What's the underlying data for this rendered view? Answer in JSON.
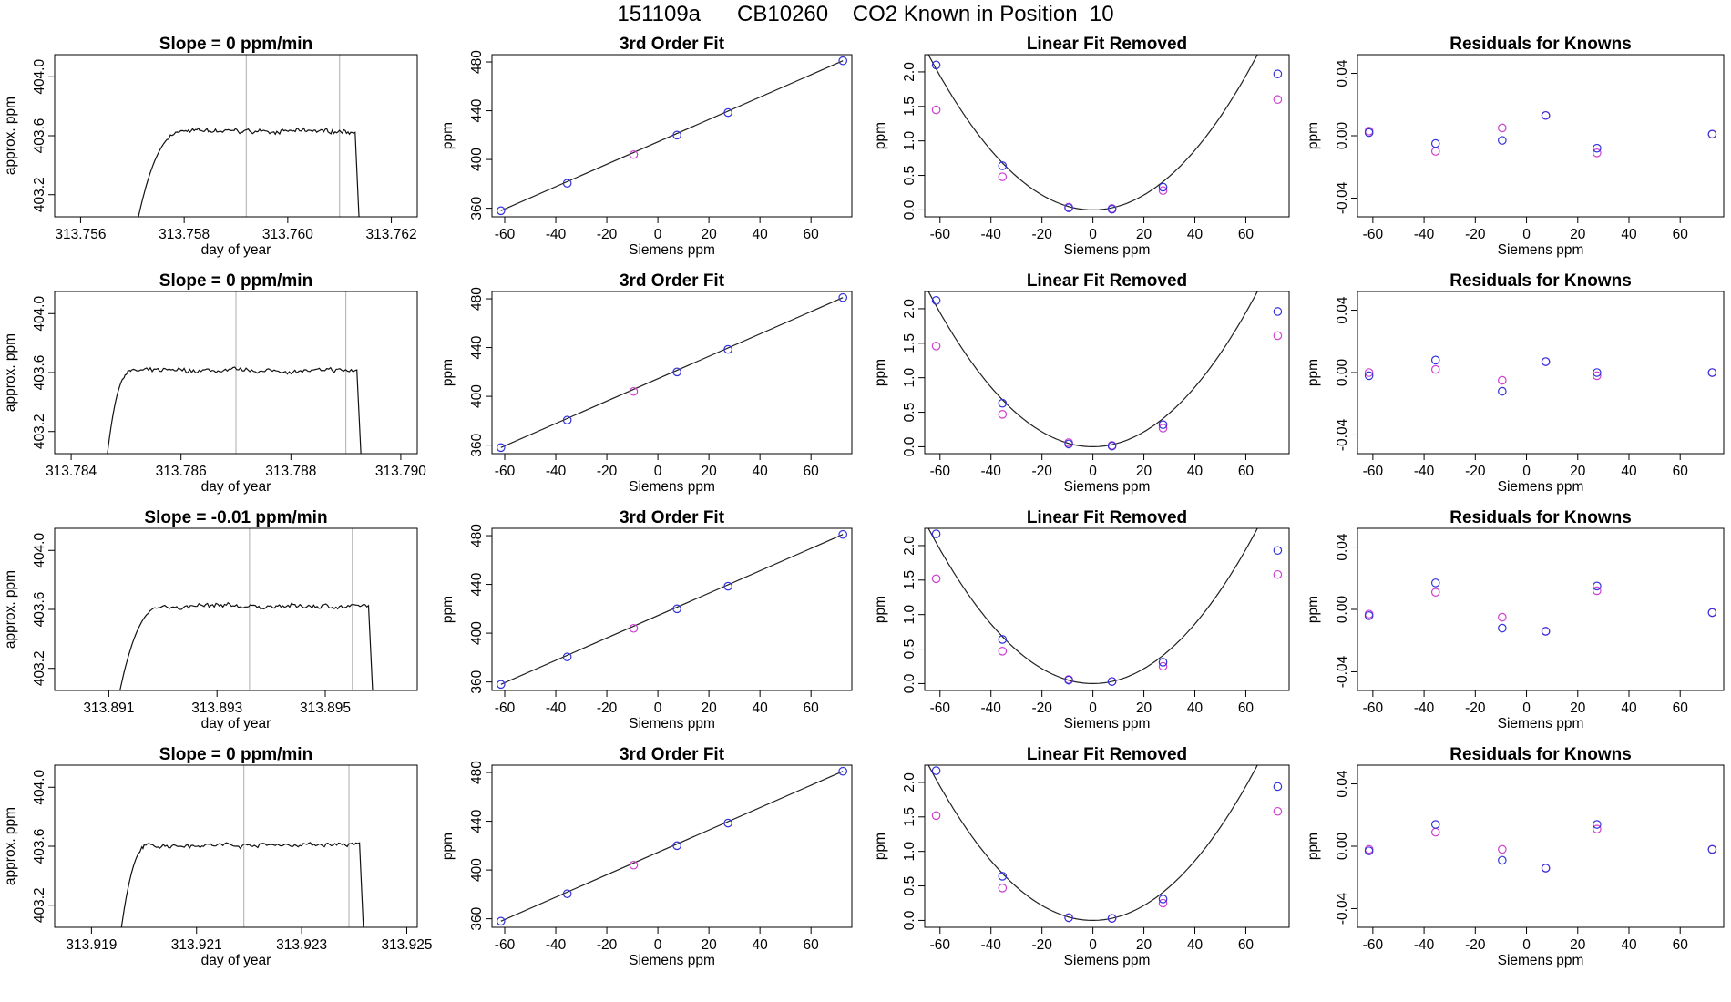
{
  "page_title": "151109a      CB10260    CO2 Known in Position  10",
  "colors": {
    "fit_line": "#222222",
    "blue_points": "#3333dd",
    "magenta_points": "#d040d0",
    "vline": "#bbbbbb",
    "frame": "#000000"
  },
  "chart_data": [
    {
      "type": "line",
      "title": "Slope =  0  ppm/min",
      "xlabel": "day of year",
      "ylabel": "approx. ppm",
      "xlim": [
        313.7555,
        313.7625
      ],
      "ylim": [
        403.05,
        404.15
      ],
      "xticks": [
        313.756,
        313.758,
        313.76,
        313.762
      ],
      "xtick_labels": [
        "313.756",
        "313.758",
        "313.760",
        "313.762"
      ],
      "yticks": [
        403.2,
        403.6,
        404.0
      ],
      "ytick_labels": [
        "403.2",
        "403.6",
        "404.0"
      ],
      "trace": {
        "x_start": 313.757,
        "x_plateau": 313.758,
        "x_drop": 313.7613,
        "x_end": 313.7614,
        "plateau": 403.63
      },
      "vlines": [
        313.7592,
        313.761
      ]
    },
    {
      "type": "scatter",
      "title": "3rd Order Fit",
      "xlabel": "Siemens ppm",
      "ylabel": "ppm",
      "xlim": [
        -65,
        76
      ],
      "ylim": [
        353,
        486
      ],
      "xticks": [
        -60,
        -40,
        -20,
        0,
        20,
        40,
        60
      ],
      "xtick_labels": [
        "-60",
        "-40",
        "-20",
        "0",
        "20",
        "40",
        "60"
      ],
      "yticks": [
        360,
        400,
        440,
        480
      ],
      "ytick_labels": [
        "360",
        "400",
        "440",
        "480"
      ],
      "blue": {
        "x": [
          -61.5,
          -35.5,
          7.5,
          27.5,
          72.5
        ],
        "y": [
          358,
          380.5,
          420,
          438.5,
          481
        ]
      },
      "magenta": {
        "x": [
          -9.5
        ],
        "y": [
          404
        ]
      },
      "fit": {
        "x": [
          -61.5,
          72.5
        ],
        "y": [
          358,
          481
        ]
      }
    },
    {
      "type": "scatter",
      "title": "Linear Fit Removed",
      "xlabel": "Siemens ppm",
      "ylabel": "ppm",
      "xlim": [
        -66,
        77
      ],
      "ylim": [
        -0.1,
        2.25
      ],
      "xticks": [
        -60,
        -40,
        -20,
        0,
        20,
        40,
        60
      ],
      "xtick_labels": [
        "-60",
        "-40",
        "-20",
        "0",
        "20",
        "40",
        "60"
      ],
      "yticks": [
        0,
        0.5,
        1.0,
        1.5,
        2.0
      ],
      "ytick_labels": [
        "0.0",
        "0.5",
        "1.0",
        "1.5",
        "2.0"
      ],
      "blue": {
        "x": [
          -61.5,
          -35.5,
          -9.5,
          7.5,
          27.5,
          72.5
        ],
        "y": [
          2.1,
          0.64,
          0.03,
          0.01,
          0.33,
          1.97
        ]
      },
      "magenta": {
        "x": [
          -61.5,
          -35.5,
          -9.5,
          7.5,
          27.5,
          72.5
        ],
        "y": [
          1.45,
          0.48,
          0.04,
          0.02,
          0.28,
          1.6
        ]
      },
      "curve": {
        "a": 0.00054,
        "c": 0.0
      }
    },
    {
      "type": "scatter",
      "title": "Residuals for Knowns",
      "xlabel": "Siemens ppm",
      "ylabel": "ppm",
      "xlim": [
        -66,
        77
      ],
      "ylim": [
        -0.052,
        0.052
      ],
      "xticks": [
        -60,
        -40,
        -20,
        0,
        20,
        40,
        60
      ],
      "xtick_labels": [
        "-60",
        "-40",
        "-20",
        "0",
        "20",
        "40",
        "60"
      ],
      "yticks": [
        -0.04,
        0,
        0.04
      ],
      "ytick_labels": [
        "-0.04",
        "0.00",
        "0.04"
      ],
      "blue": {
        "x": [
          -61.5,
          -35.5,
          -9.5,
          7.5,
          27.5,
          72.5
        ],
        "y": [
          0.002,
          -0.005,
          -0.003,
          0.013,
          -0.008,
          0.001
        ]
      },
      "magenta": {
        "x": [
          -61.5,
          -35.5,
          -9.5,
          7.5,
          27.5,
          72.5
        ],
        "y": [
          0.003,
          -0.01,
          0.005,
          0.013,
          -0.011,
          0.001
        ]
      }
    },
    {
      "type": "line",
      "title": "Slope =  0  ppm/min",
      "xlabel": "day of year",
      "ylabel": "approx. ppm",
      "xlim": [
        313.7837,
        313.7903
      ],
      "ylim": [
        403.05,
        404.15
      ],
      "xticks": [
        313.784,
        313.786,
        313.788,
        313.79
      ],
      "xtick_labels": [
        "313.784",
        "313.786",
        "313.788",
        "313.790"
      ],
      "yticks": [
        403.2,
        403.6,
        404.0
      ],
      "ytick_labels": [
        "403.2",
        "403.6",
        "404.0"
      ],
      "trace": {
        "x_start": 313.7846,
        "x_plateau": 313.7851,
        "x_drop": 313.7892,
        "x_end": 313.7893,
        "plateau": 403.61
      },
      "vlines": [
        313.787,
        313.789
      ]
    },
    {
      "type": "scatter",
      "title": "3rd Order Fit",
      "xlabel": "Siemens ppm",
      "ylabel": "ppm",
      "xlim": [
        -65,
        76
      ],
      "ylim": [
        353,
        486
      ],
      "xticks": [
        -60,
        -40,
        -20,
        0,
        20,
        40,
        60
      ],
      "xtick_labels": [
        "-60",
        "-40",
        "-20",
        "0",
        "20",
        "40",
        "60"
      ],
      "yticks": [
        360,
        400,
        440,
        480
      ],
      "ytick_labels": [
        "360",
        "400",
        "440",
        "480"
      ],
      "blue": {
        "x": [
          -61.5,
          -35.5,
          7.5,
          27.5,
          72.5
        ],
        "y": [
          358,
          380.5,
          420,
          438.5,
          481
        ]
      },
      "magenta": {
        "x": [
          -9.5
        ],
        "y": [
          404
        ]
      },
      "fit": {
        "x": [
          -61.5,
          72.5
        ],
        "y": [
          358,
          481
        ]
      }
    },
    {
      "type": "scatter",
      "title": "Linear Fit Removed",
      "xlabel": "Siemens ppm",
      "ylabel": "ppm",
      "xlim": [
        -66,
        77
      ],
      "ylim": [
        -0.1,
        2.25
      ],
      "xticks": [
        -60,
        -40,
        -20,
        0,
        20,
        40,
        60
      ],
      "xtick_labels": [
        "-60",
        "-40",
        "-20",
        "0",
        "20",
        "40",
        "60"
      ],
      "yticks": [
        0,
        0.5,
        1.0,
        1.5,
        2.0
      ],
      "ytick_labels": [
        "0.0",
        "0.5",
        "1.0",
        "1.5",
        "2.0"
      ],
      "blue": {
        "x": [
          -61.5,
          -35.5,
          -9.5,
          7.5,
          27.5,
          72.5
        ],
        "y": [
          2.12,
          0.63,
          0.04,
          0.01,
          0.32,
          1.96
        ]
      },
      "magenta": {
        "x": [
          -61.5,
          -35.5,
          -9.5,
          7.5,
          27.5,
          72.5
        ],
        "y": [
          1.46,
          0.47,
          0.06,
          0.02,
          0.27,
          1.61
        ]
      },
      "curve": {
        "a": 0.00054,
        "c": 0.0
      }
    },
    {
      "type": "scatter",
      "title": "Residuals for Knowns",
      "xlabel": "Siemens ppm",
      "ylabel": "ppm",
      "xlim": [
        -66,
        77
      ],
      "ylim": [
        -0.052,
        0.052
      ],
      "xticks": [
        -60,
        -40,
        -20,
        0,
        20,
        40,
        60
      ],
      "xtick_labels": [
        "-60",
        "-40",
        "-20",
        "0",
        "20",
        "40",
        "60"
      ],
      "yticks": [
        -0.04,
        0,
        0.04
      ],
      "ytick_labels": [
        "-0.04",
        "0.00",
        "0.04"
      ],
      "blue": {
        "x": [
          -61.5,
          -35.5,
          -9.5,
          7.5,
          27.5,
          72.5
        ],
        "y": [
          -0.002,
          0.008,
          -0.012,
          0.007,
          0.0,
          0.0
        ]
      },
      "magenta": {
        "x": [
          -61.5,
          -35.5,
          -9.5,
          7.5,
          27.5,
          72.5
        ],
        "y": [
          0.0,
          0.002,
          -0.005,
          0.007,
          -0.002,
          0.0
        ]
      }
    },
    {
      "type": "line",
      "title": "Slope =  -0.01  ppm/min",
      "xlabel": "day of year",
      "ylabel": "approx. ppm",
      "xlim": [
        313.89,
        313.8967
      ],
      "ylim": [
        403.05,
        404.15
      ],
      "xticks": [
        313.891,
        313.893,
        313.895
      ],
      "xtick_labels": [
        "313.891",
        "313.893",
        "313.895"
      ],
      "yticks": [
        403.2,
        403.6,
        404.0
      ],
      "ytick_labels": [
        "403.2",
        "403.6",
        "404.0"
      ],
      "trace": {
        "x_start": 313.8911,
        "x_plateau": 313.892,
        "x_drop": 313.8958,
        "x_end": 313.8959,
        "plateau": 403.62
      },
      "vlines": [
        313.8936,
        313.8955
      ]
    },
    {
      "type": "scatter",
      "title": "3rd Order Fit",
      "xlabel": "Siemens ppm",
      "ylabel": "ppm",
      "xlim": [
        -65,
        76
      ],
      "ylim": [
        353,
        486
      ],
      "xticks": [
        -60,
        -40,
        -20,
        0,
        20,
        40,
        60
      ],
      "xtick_labels": [
        "-60",
        "-40",
        "-20",
        "0",
        "20",
        "40",
        "60"
      ],
      "yticks": [
        360,
        400,
        440,
        480
      ],
      "ytick_labels": [
        "360",
        "400",
        "440",
        "480"
      ],
      "blue": {
        "x": [
          -61.5,
          -35.5,
          7.5,
          27.5,
          72.5
        ],
        "y": [
          358,
          380.5,
          420,
          438.5,
          481
        ]
      },
      "magenta": {
        "x": [
          -9.5
        ],
        "y": [
          404
        ]
      },
      "fit": {
        "x": [
          -61.5,
          72.5
        ],
        "y": [
          358,
          481
        ]
      }
    },
    {
      "type": "scatter",
      "title": "Linear Fit Removed",
      "xlabel": "Siemens ppm",
      "ylabel": "ppm",
      "xlim": [
        -66,
        77
      ],
      "ylim": [
        -0.1,
        2.25
      ],
      "xticks": [
        -60,
        -40,
        -20,
        0,
        20,
        40,
        60
      ],
      "xtick_labels": [
        "-60",
        "-40",
        "-20",
        "0",
        "20",
        "40",
        "60"
      ],
      "yticks": [
        0,
        0.5,
        1.0,
        1.5,
        2.0
      ],
      "ytick_labels": [
        "0.0",
        "0.5",
        "1.0",
        "1.5",
        "2.0"
      ],
      "blue": {
        "x": [
          -61.5,
          -35.5,
          -9.5,
          7.5,
          27.5,
          72.5
        ],
        "y": [
          2.17,
          0.64,
          0.05,
          0.03,
          0.31,
          1.93
        ]
      },
      "magenta": {
        "x": [
          -61.5,
          -35.5,
          -9.5,
          7.5,
          27.5,
          72.5
        ],
        "y": [
          1.52,
          0.47,
          0.06,
          0.03,
          0.25,
          1.58
        ]
      },
      "curve": {
        "a": 0.00054,
        "c": 0.0
      }
    },
    {
      "type": "scatter",
      "title": "Residuals for Knowns",
      "xlabel": "Siemens ppm",
      "ylabel": "ppm",
      "xlim": [
        -66,
        77
      ],
      "ylim": [
        -0.052,
        0.052
      ],
      "xticks": [
        -60,
        -40,
        -20,
        0,
        20,
        40,
        60
      ],
      "xtick_labels": [
        "-60",
        "-40",
        "-20",
        "0",
        "20",
        "40",
        "60"
      ],
      "yticks": [
        -0.04,
        0,
        0.04
      ],
      "ytick_labels": [
        "-0.04",
        "0.00",
        "0.04"
      ],
      "blue": {
        "x": [
          -61.5,
          -35.5,
          -9.5,
          7.5,
          27.5,
          72.5
        ],
        "y": [
          -0.004,
          0.017,
          -0.012,
          -0.014,
          0.015,
          -0.002
        ]
      },
      "magenta": {
        "x": [
          -61.5,
          -35.5,
          -9.5,
          7.5,
          27.5,
          72.5
        ],
        "y": [
          -0.003,
          0.011,
          -0.005,
          -0.014,
          0.012,
          -0.002
        ]
      }
    },
    {
      "type": "line",
      "title": "Slope =  0  ppm/min",
      "xlabel": "day of year",
      "ylabel": "approx. ppm",
      "xlim": [
        313.9183,
        313.9252
      ],
      "ylim": [
        403.05,
        404.15
      ],
      "xticks": [
        313.919,
        313.921,
        313.923,
        313.925
      ],
      "xtick_labels": [
        "313.919",
        "313.921",
        "313.923",
        "313.925"
      ],
      "yticks": [
        403.2,
        403.6,
        404.0
      ],
      "ytick_labels": [
        "403.2",
        "403.6",
        "404.0"
      ],
      "trace": {
        "x_start": 313.9195,
        "x_plateau": 313.9201,
        "x_drop": 313.9241,
        "x_end": 313.9242,
        "plateau": 403.61
      },
      "vlines": [
        313.9219,
        313.9239
      ]
    },
    {
      "type": "scatter",
      "title": "3rd Order Fit",
      "xlabel": "Siemens ppm",
      "ylabel": "ppm",
      "xlim": [
        -65,
        76
      ],
      "ylim": [
        353,
        486
      ],
      "xticks": [
        -60,
        -40,
        -20,
        0,
        20,
        40,
        60
      ],
      "xtick_labels": [
        "-60",
        "-40",
        "-20",
        "0",
        "20",
        "40",
        "60"
      ],
      "yticks": [
        360,
        400,
        440,
        480
      ],
      "ytick_labels": [
        "360",
        "400",
        "440",
        "480"
      ],
      "blue": {
        "x": [
          -61.5,
          -35.5,
          7.5,
          27.5,
          72.5
        ],
        "y": [
          358,
          380.5,
          420,
          438.5,
          481
        ]
      },
      "magenta": {
        "x": [
          -9.5
        ],
        "y": [
          404
        ]
      },
      "fit": {
        "x": [
          -61.5,
          72.5
        ],
        "y": [
          358,
          481
        ]
      }
    },
    {
      "type": "scatter",
      "title": "Linear Fit Removed",
      "xlabel": "Siemens ppm",
      "ylabel": "ppm",
      "xlim": [
        -66,
        77
      ],
      "ylim": [
        -0.1,
        2.25
      ],
      "xticks": [
        -60,
        -40,
        -20,
        0,
        20,
        40,
        60
      ],
      "xtick_labels": [
        "-60",
        "-40",
        "-20",
        "0",
        "20",
        "40",
        "60"
      ],
      "yticks": [
        0,
        0.5,
        1.0,
        1.5,
        2.0
      ],
      "ytick_labels": [
        "0.0",
        "0.5",
        "1.0",
        "1.5",
        "2.0"
      ],
      "blue": {
        "x": [
          -61.5,
          -35.5,
          -9.5,
          7.5,
          27.5,
          72.5
        ],
        "y": [
          2.17,
          0.64,
          0.04,
          0.03,
          0.31,
          1.94
        ]
      },
      "magenta": {
        "x": [
          -61.5,
          -35.5,
          -9.5,
          7.5,
          27.5,
          72.5
        ],
        "y": [
          1.52,
          0.47,
          0.04,
          0.03,
          0.25,
          1.58
        ]
      },
      "curve": {
        "a": 0.00054,
        "c": 0.0
      }
    },
    {
      "type": "scatter",
      "title": "Residuals for Knowns",
      "xlabel": "Siemens ppm",
      "ylabel": "ppm",
      "xlim": [
        -66,
        77
      ],
      "ylim": [
        -0.052,
        0.052
      ],
      "xticks": [
        -60,
        -40,
        -20,
        0,
        20,
        40,
        60
      ],
      "xtick_labels": [
        "-60",
        "-40",
        "-20",
        "0",
        "20",
        "40",
        "60"
      ],
      "yticks": [
        -0.04,
        0,
        0.04
      ],
      "ytick_labels": [
        "-0.04",
        "0.00",
        "0.04"
      ],
      "blue": {
        "x": [
          -61.5,
          -35.5,
          -9.5,
          7.5,
          27.5,
          72.5
        ],
        "y": [
          -0.003,
          0.014,
          -0.009,
          -0.014,
          0.014,
          -0.002
        ]
      },
      "magenta": {
        "x": [
          -61.5,
          -35.5,
          -9.5,
          7.5,
          27.5,
          72.5
        ],
        "y": [
          -0.002,
          0.009,
          -0.002,
          -0.014,
          0.011,
          -0.002
        ]
      }
    }
  ]
}
